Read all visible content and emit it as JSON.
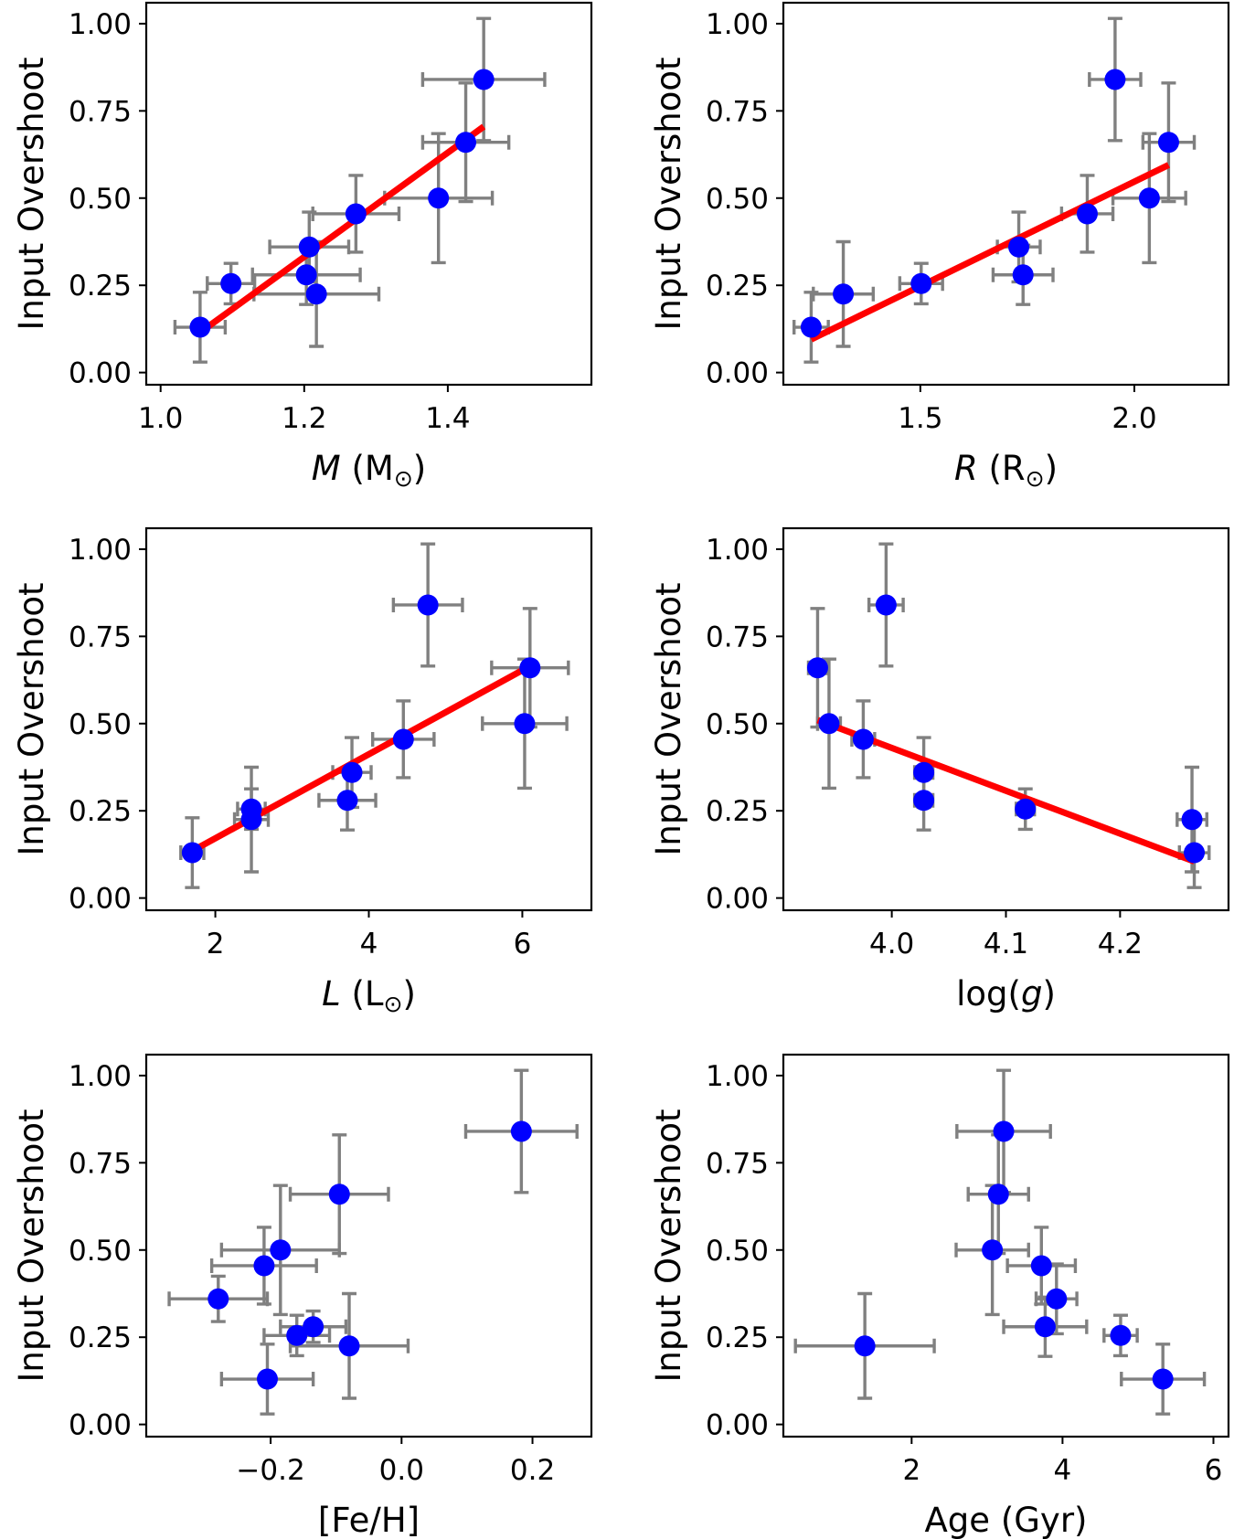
{
  "chart_data": [
    {
      "type": "scatter",
      "xlabel_parts": [
        {
          "text": "M",
          "italic": true
        },
        {
          "text": " (M"
        },
        {
          "text": "⊙",
          "sub": true
        },
        {
          "text": ")"
        }
      ],
      "ylabel": "Input Overshoot",
      "xlim": [
        0.98,
        1.6
      ],
      "ylim": [
        -0.035,
        1.06
      ],
      "xticks": [
        {
          "v": 1.0,
          "label": "1.0"
        },
        {
          "v": 1.2,
          "label": "1.2"
        },
        {
          "v": 1.4,
          "label": "1.4"
        }
      ],
      "yticks": [
        {
          "v": 0.0,
          "label": "0.00"
        },
        {
          "v": 0.25,
          "label": "0.25"
        },
        {
          "v": 0.5,
          "label": "0.50"
        },
        {
          "v": 0.75,
          "label": "0.75"
        },
        {
          "v": 1.0,
          "label": "1.00"
        }
      ],
      "points": [
        {
          "x": 1.055,
          "y": 0.13,
          "xerr": 0.035,
          "yerr": 0.1
        },
        {
          "x": 1.098,
          "y": 0.255,
          "xerr": 0.033,
          "yerr": 0.058
        },
        {
          "x": 1.203,
          "y": 0.28,
          "xerr": 0.075,
          "yerr": 0.085
        },
        {
          "x": 1.207,
          "y": 0.36,
          "xerr": 0.055,
          "yerr": 0.1
        },
        {
          "x": 1.217,
          "y": 0.225,
          "xerr": 0.087,
          "yerr": 0.15
        },
        {
          "x": 1.272,
          "y": 0.455,
          "xerr": 0.06,
          "yerr": 0.11
        },
        {
          "x": 1.387,
          "y": 0.5,
          "xerr": 0.075,
          "yerr": 0.185
        },
        {
          "x": 1.425,
          "y": 0.66,
          "xerr": 0.06,
          "yerr": 0.17
        },
        {
          "x": 1.45,
          "y": 0.84,
          "xerr": 0.085,
          "yerr": 0.175
        }
      ],
      "fit": {
        "x": [
          1.055,
          1.45
        ],
        "y": [
          0.115,
          0.705
        ]
      }
    },
    {
      "type": "scatter",
      "xlabel_parts": [
        {
          "text": "R",
          "italic": true
        },
        {
          "text": " (R"
        },
        {
          "text": "⊙",
          "sub": true
        },
        {
          "text": ")"
        }
      ],
      "ylabel": "Input Overshoot",
      "xlim": [
        1.18,
        2.22
      ],
      "ylim": [
        -0.035,
        1.06
      ],
      "xticks": [
        {
          "v": 1.5,
          "label": "1.5"
        },
        {
          "v": 2.0,
          "label": "2.0"
        }
      ],
      "yticks": [
        {
          "v": 0.0,
          "label": "0.00"
        },
        {
          "v": 0.25,
          "label": "0.25"
        },
        {
          "v": 0.5,
          "label": "0.50"
        },
        {
          "v": 0.75,
          "label": "0.75"
        },
        {
          "v": 1.0,
          "label": "1.00"
        }
      ],
      "points": [
        {
          "x": 1.245,
          "y": 0.13,
          "xerr": 0.04,
          "yerr": 0.1
        },
        {
          "x": 1.32,
          "y": 0.225,
          "xerr": 0.07,
          "yerr": 0.15
        },
        {
          "x": 1.502,
          "y": 0.255,
          "xerr": 0.05,
          "yerr": 0.058
        },
        {
          "x": 1.73,
          "y": 0.36,
          "xerr": 0.05,
          "yerr": 0.1
        },
        {
          "x": 1.74,
          "y": 0.28,
          "xerr": 0.07,
          "yerr": 0.085
        },
        {
          "x": 1.89,
          "y": 0.455,
          "xerr": 0.06,
          "yerr": 0.11
        },
        {
          "x": 1.955,
          "y": 0.84,
          "xerr": 0.06,
          "yerr": 0.175
        },
        {
          "x": 2.035,
          "y": 0.5,
          "xerr": 0.085,
          "yerr": 0.185
        },
        {
          "x": 2.08,
          "y": 0.66,
          "xerr": 0.06,
          "yerr": 0.17
        }
      ],
      "fit": {
        "x": [
          1.245,
          2.08
        ],
        "y": [
          0.095,
          0.595
        ]
      }
    },
    {
      "type": "scatter",
      "xlabel_parts": [
        {
          "text": "L",
          "italic": true
        },
        {
          "text": " (L"
        },
        {
          "text": "⊙",
          "sub": true
        },
        {
          "text": ")"
        }
      ],
      "ylabel": "Input Overshoot",
      "xlim": [
        1.1,
        6.9
      ],
      "ylim": [
        -0.035,
        1.06
      ],
      "xticks": [
        {
          "v": 2,
          "label": "2"
        },
        {
          "v": 4,
          "label": "4"
        },
        {
          "v": 6,
          "label": "6"
        }
      ],
      "yticks": [
        {
          "v": 0.0,
          "label": "0.00"
        },
        {
          "v": 0.25,
          "label": "0.25"
        },
        {
          "v": 0.5,
          "label": "0.50"
        },
        {
          "v": 0.75,
          "label": "0.75"
        },
        {
          "v": 1.0,
          "label": "1.00"
        }
      ],
      "points": [
        {
          "x": 1.7,
          "y": 0.13,
          "xerr": 0.15,
          "yerr": 0.1
        },
        {
          "x": 2.47,
          "y": 0.225,
          "xerr": 0.22,
          "yerr": 0.15
        },
        {
          "x": 2.47,
          "y": 0.255,
          "xerr": 0.18,
          "yerr": 0.058
        },
        {
          "x": 3.72,
          "y": 0.28,
          "xerr": 0.37,
          "yerr": 0.085
        },
        {
          "x": 3.78,
          "y": 0.36,
          "xerr": 0.25,
          "yerr": 0.1
        },
        {
          "x": 4.45,
          "y": 0.455,
          "xerr": 0.4,
          "yerr": 0.11
        },
        {
          "x": 4.77,
          "y": 0.84,
          "xerr": 0.45,
          "yerr": 0.175
        },
        {
          "x": 6.03,
          "y": 0.5,
          "xerr": 0.55,
          "yerr": 0.185
        },
        {
          "x": 6.1,
          "y": 0.66,
          "xerr": 0.5,
          "yerr": 0.17
        }
      ],
      "fit": {
        "x": [
          1.7,
          6.1
        ],
        "y": [
          0.135,
          0.665
        ]
      }
    },
    {
      "type": "scatter",
      "xlabel_parts": [
        {
          "text": "log("
        },
        {
          "text": "g",
          "italic": true
        },
        {
          "text": ")"
        }
      ],
      "ylabel": "Input Overshoot",
      "xlim": [
        3.905,
        4.295
      ],
      "ylim": [
        -0.035,
        1.06
      ],
      "xticks": [
        {
          "v": 4.0,
          "label": "4.0"
        },
        {
          "v": 4.1,
          "label": "4.1"
        },
        {
          "v": 4.2,
          "label": "4.2"
        }
      ],
      "yticks": [
        {
          "v": 0.0,
          "label": "0.00"
        },
        {
          "v": 0.25,
          "label": "0.25"
        },
        {
          "v": 0.5,
          "label": "0.50"
        },
        {
          "v": 0.75,
          "label": "0.75"
        },
        {
          "v": 1.0,
          "label": "1.00"
        }
      ],
      "points": [
        {
          "x": 3.935,
          "y": 0.66,
          "xerr": 0.008,
          "yerr": 0.17
        },
        {
          "x": 3.945,
          "y": 0.5,
          "xerr": 0.01,
          "yerr": 0.185
        },
        {
          "x": 3.975,
          "y": 0.455,
          "xerr": 0.01,
          "yerr": 0.11
        },
        {
          "x": 3.995,
          "y": 0.84,
          "xerr": 0.015,
          "yerr": 0.175
        },
        {
          "x": 4.028,
          "y": 0.36,
          "xerr": 0.008,
          "yerr": 0.1
        },
        {
          "x": 4.028,
          "y": 0.28,
          "xerr": 0.008,
          "yerr": 0.085
        },
        {
          "x": 4.117,
          "y": 0.255,
          "xerr": 0.008,
          "yerr": 0.058
        },
        {
          "x": 4.263,
          "y": 0.225,
          "xerr": 0.013,
          "yerr": 0.15
        },
        {
          "x": 4.265,
          "y": 0.13,
          "xerr": 0.013,
          "yerr": 0.1
        }
      ],
      "fit": {
        "x": [
          3.935,
          4.265
        ],
        "y": [
          0.51,
          0.105
        ]
      }
    },
    {
      "type": "scatter",
      "xlabel_parts": [
        {
          "text": "[Fe/H]"
        }
      ],
      "ylabel": "Input Overshoot",
      "xlim": [
        -0.39,
        0.29
      ],
      "ylim": [
        -0.035,
        1.06
      ],
      "xticks": [
        {
          "v": -0.2,
          "label": "−0.2"
        },
        {
          "v": 0.0,
          "label": "0.0"
        },
        {
          "v": 0.2,
          "label": "0.2"
        }
      ],
      "yticks": [
        {
          "v": 0.0,
          "label": "0.00"
        },
        {
          "v": 0.25,
          "label": "0.25"
        },
        {
          "v": 0.5,
          "label": "0.50"
        },
        {
          "v": 0.75,
          "label": "0.75"
        },
        {
          "v": 1.0,
          "label": "1.00"
        }
      ],
      "points": [
        {
          "x": -0.28,
          "y": 0.36,
          "xerr": 0.075,
          "yerr": 0.065
        },
        {
          "x": -0.21,
          "y": 0.455,
          "xerr": 0.08,
          "yerr": 0.11
        },
        {
          "x": -0.205,
          "y": 0.13,
          "xerr": 0.07,
          "yerr": 0.1
        },
        {
          "x": -0.185,
          "y": 0.5,
          "xerr": 0.09,
          "yerr": 0.185
        },
        {
          "x": -0.16,
          "y": 0.255,
          "xerr": 0.05,
          "yerr": 0.058
        },
        {
          "x": -0.135,
          "y": 0.28,
          "xerr": 0.05,
          "yerr": 0.045
        },
        {
          "x": -0.095,
          "y": 0.66,
          "xerr": 0.075,
          "yerr": 0.17
        },
        {
          "x": -0.08,
          "y": 0.225,
          "xerr": 0.09,
          "yerr": 0.15
        },
        {
          "x": 0.183,
          "y": 0.84,
          "xerr": 0.085,
          "yerr": 0.175
        }
      ],
      "fit": null
    },
    {
      "type": "scatter",
      "xlabel_parts": [
        {
          "text": "Age (Gyr)"
        }
      ],
      "ylabel": "Input Overshoot",
      "xlim": [
        0.3,
        6.2
      ],
      "ylim": [
        -0.035,
        1.06
      ],
      "xticks": [
        {
          "v": 2,
          "label": "2"
        },
        {
          "v": 4,
          "label": "4"
        },
        {
          "v": 6,
          "label": "6"
        }
      ],
      "yticks": [
        {
          "v": 0.0,
          "label": "0.00"
        },
        {
          "v": 0.25,
          "label": "0.25"
        },
        {
          "v": 0.5,
          "label": "0.50"
        },
        {
          "v": 0.75,
          "label": "0.75"
        },
        {
          "v": 1.0,
          "label": "1.00"
        }
      ],
      "points": [
        {
          "x": 1.38,
          "y": 0.225,
          "xerr": 0.92,
          "yerr": 0.15
        },
        {
          "x": 3.07,
          "y": 0.5,
          "xerr": 0.48,
          "yerr": 0.185
        },
        {
          "x": 3.15,
          "y": 0.66,
          "xerr": 0.4,
          "yerr": 0.17
        },
        {
          "x": 3.22,
          "y": 0.84,
          "xerr": 0.62,
          "yerr": 0.175
        },
        {
          "x": 3.72,
          "y": 0.455,
          "xerr": 0.45,
          "yerr": 0.11
        },
        {
          "x": 3.77,
          "y": 0.28,
          "xerr": 0.55,
          "yerr": 0.085
        },
        {
          "x": 3.92,
          "y": 0.36,
          "xerr": 0.27,
          "yerr": 0.1
        },
        {
          "x": 4.77,
          "y": 0.255,
          "xerr": 0.22,
          "yerr": 0.058
        },
        {
          "x": 5.33,
          "y": 0.13,
          "xerr": 0.55,
          "yerr": 0.1
        }
      ],
      "fit": null
    }
  ]
}
